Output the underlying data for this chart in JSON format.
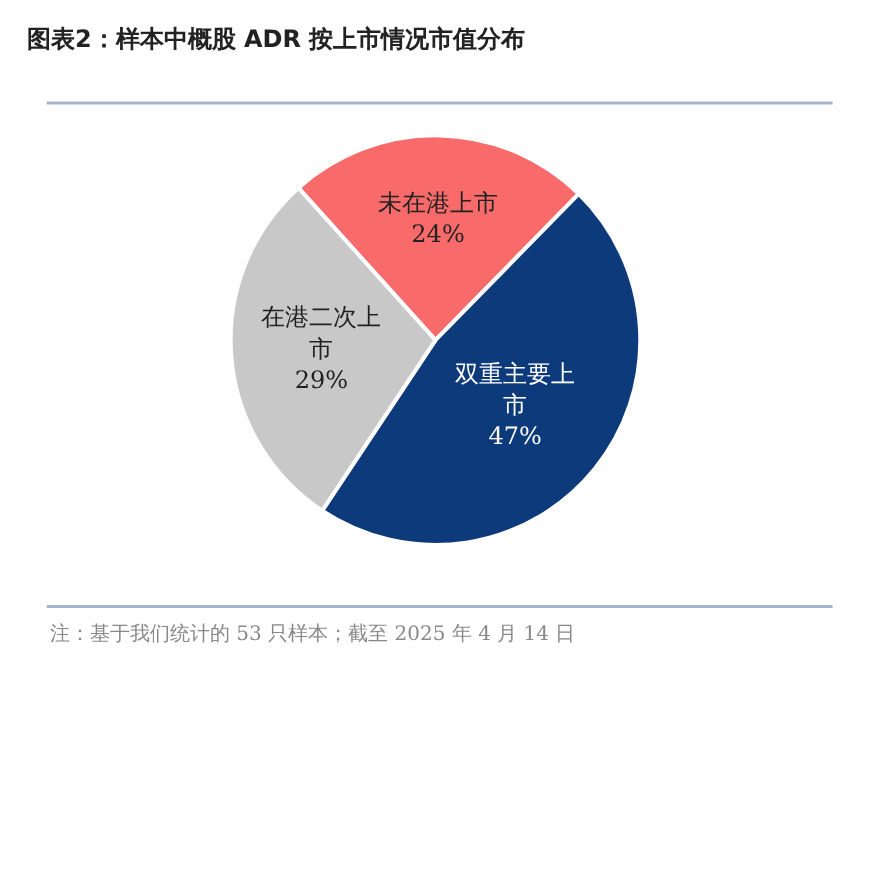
{
  "chart_data": {
    "type": "pie",
    "title": "图表2：样本中概股 ADR 按上市情况市值分布",
    "categories": [
      "未在港上市",
      "双重主要上市",
      "在港二次上市"
    ],
    "values": [
      24,
      47,
      29
    ],
    "value_labels": [
      "24%",
      "47%",
      "29%"
    ],
    "colors": [
      "#f96b6b",
      "#0d3a7a",
      "#c8c8c8"
    ],
    "annotations": [
      "注：基于我们统计的 53 只样本；截至 2025 年 4 月 14 日"
    ]
  }
}
